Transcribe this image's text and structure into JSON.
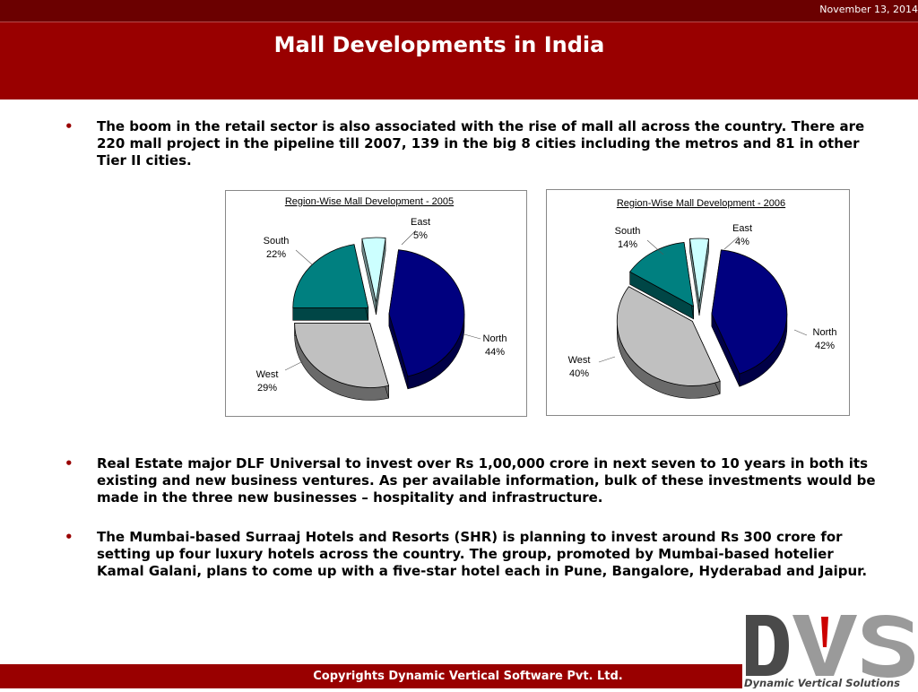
{
  "header": {
    "date": "November 13, 2014",
    "title": "Mall Developments in India"
  },
  "bullets": [
    "The boom in the retail sector is also associated with the rise of mall all across the country. There are 220 mall project in the pipeline till 2007, 139 in the big 8 cities including the metros and 81 in other Tier II cities.",
    "Real Estate major DLF Universal to invest over Rs 1,00,000 crore in next seven to 10 years in both its existing and new business ventures. As per available information, bulk of these investments would be made in the three new businesses – hospitality and infrastructure.",
    "The Mumbai-based Surraaj Hotels and Resorts (SHR) is planning to invest around Rs 300 crore for setting up four luxury hotels across the country. The group, promoted by Mumbai-based hotelier Kamal Galani, plans to come up with a five-star hotel each in Pune, Bangalore, Hyderabad and Jaipur."
  ],
  "bullet_marker": "•",
  "footer": {
    "copyright": "Copyrights Dynamic Vertical Software Pvt. Ltd."
  },
  "logo": {
    "text": "Dynamic Vertical Solutions",
    "letters": "DVS"
  },
  "chart_data": [
    {
      "type": "pie",
      "title": "Region-Wise Mall Development - 2005",
      "categories": [
        "North",
        "West",
        "South",
        "East"
      ],
      "values": [
        44,
        29,
        22,
        5
      ],
      "labels": [
        "44%",
        "29%",
        "22%",
        "5%"
      ],
      "colors": [
        "#00007f",
        "#c0c0c0",
        "#008080",
        "#ccffff"
      ],
      "exploded": true,
      "three_d": true
    },
    {
      "type": "pie",
      "title": "Region-Wise Mall Development - 2006",
      "categories": [
        "North",
        "West",
        "South",
        "East"
      ],
      "values": [
        42,
        40,
        14,
        4
      ],
      "labels": [
        "42%",
        "40%",
        "14%",
        "4%"
      ],
      "colors": [
        "#00007f",
        "#c0c0c0",
        "#008080",
        "#ccffff"
      ],
      "exploded": true,
      "three_d": true
    }
  ]
}
